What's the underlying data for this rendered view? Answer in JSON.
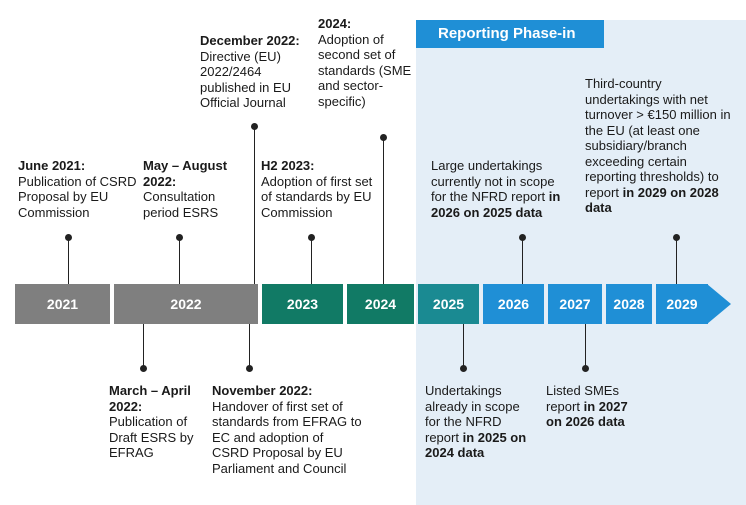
{
  "phase_label": "Reporting Phase-in",
  "colors": {
    "grey": "#7f7f7f",
    "green": "#117a65",
    "teal": "#1a8a92",
    "blue": "#1f8fd6",
    "panel": "#e4eef7"
  },
  "timeline": [
    {
      "year": "2021",
      "color": "#7f7f7f"
    },
    {
      "year": "2022",
      "color": "#7f7f7f"
    },
    {
      "year": "2023",
      "color": "#117a65"
    },
    {
      "year": "2024",
      "color": "#117a65"
    },
    {
      "year": "2025",
      "color": "#1a8a92"
    },
    {
      "year": "2026",
      "color": "#1f8fd6"
    },
    {
      "year": "2027",
      "color": "#1f8fd6"
    },
    {
      "year": "2028",
      "color": "#1f8fd6"
    },
    {
      "year": "2029",
      "color": "#1f8fd6"
    }
  ],
  "notes": {
    "june2021": {
      "head": "June 2021:",
      "body": "Publication of CSRD Proposal by EU Commission"
    },
    "may2022": {
      "head": "May – August 2022:",
      "body": "Consultation period ESRS"
    },
    "dec2022": {
      "head": "December 2022:",
      "body": "Directive (EU) 2022/2464 published in EU Official Journal"
    },
    "h22023": {
      "head": "H2 2023:",
      "body": "Adoption of first set of standards by EU Commission"
    },
    "y2024": {
      "head": "2024:",
      "body": "Adoption of second set of standards (SME and sector-specific)"
    },
    "large": {
      "pre": "Large undertakings currently not in scope for the NFRD report",
      "bold": "in 2026 on 2025 data"
    },
    "third": {
      "pre": "Third-country undertakings with net turnover > €150 million in the EU (at least one subsidiary/branch exceeding certain reporting thresholds) to report",
      "bold": "in 2029 on 2028 data"
    },
    "march2022": {
      "head": "March – April 2022:",
      "body": "Publication of Draft ESRS by EFRAG"
    },
    "nov2022": {
      "head": "November 2022:",
      "body": "Handover of first set of standards from EFRAG to EC and adoption of CSRD Proposal by EU Parliament and Council"
    },
    "nfrd": {
      "pre": "Undertakings already in scope for the NFRD report",
      "bold": "in 2025 on 2024 data"
    },
    "smes": {
      "pre": "Listed SMEs report",
      "bold": "in 2027 on 2026 data"
    }
  }
}
